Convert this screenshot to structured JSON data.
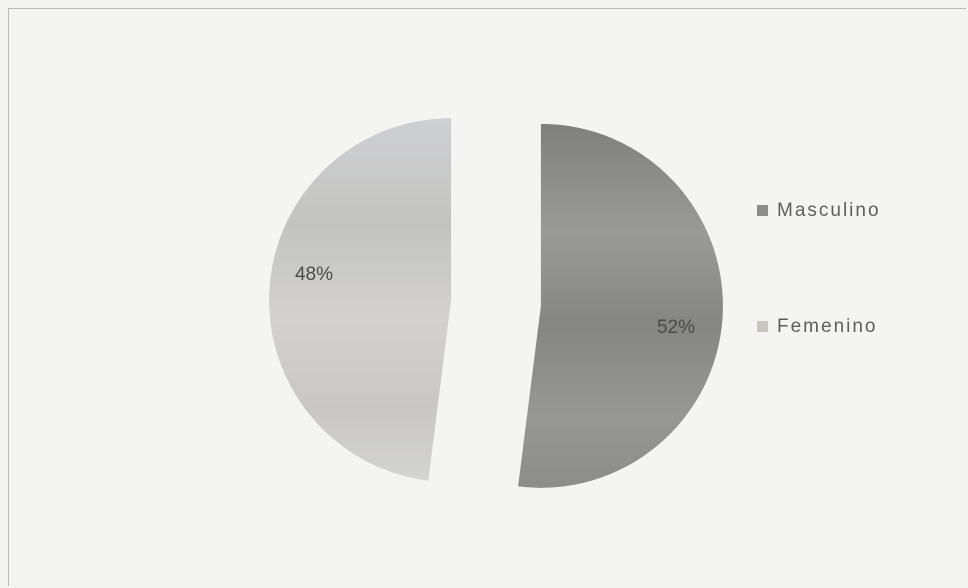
{
  "chart_data": {
    "type": "pie",
    "title": "",
    "series": [
      {
        "name": "",
        "slices": [
          {
            "label": "Masculino",
            "value": 52,
            "display": "52%",
            "color": "#8a8a8a"
          },
          {
            "label": "Femenino",
            "value": 48,
            "display": "48%",
            "color": "#c8c8c6"
          }
        ]
      }
    ],
    "legend": {
      "placement": "right",
      "entries": [
        "Masculino",
        "Femenino"
      ]
    },
    "exploded": true
  }
}
